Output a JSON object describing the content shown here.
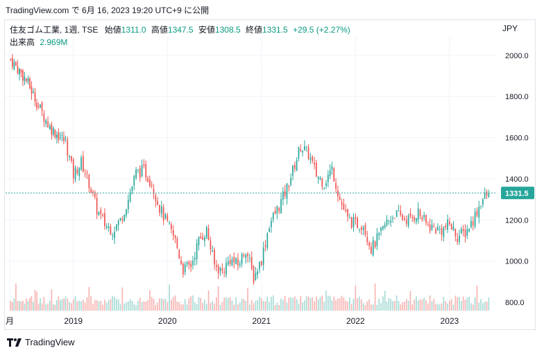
{
  "header": {
    "source": "TradingView.com で 6月 16, 2023 19:20 UTC+9 に公開"
  },
  "legend": {
    "symbol": "住友ゴム工業, 1週, TSE",
    "open_label": "始値",
    "open": "1311.0",
    "high_label": "高値",
    "high": "1347.5",
    "low_label": "安値",
    "low": "1308.5",
    "close_label": "終値",
    "close": "1331.5",
    "change": "+29.5 (+2.27%)",
    "volume_label": "出来高",
    "volume": "2.969M"
  },
  "currency": "JPY",
  "last_price_tag": "1331.5",
  "footer": {
    "brand": "TradingView"
  },
  "colors": {
    "up": "#26a69a",
    "down": "#ef5350",
    "up_vol": "#a8dcd6",
    "down_vol": "#f7b6b4",
    "grid": "#f0f3fa",
    "price_line": "#26a69a"
  },
  "chart_data": {
    "type": "candlestick",
    "x_tick_labels": [
      "月",
      "2019",
      "2020",
      "2021",
      "2022",
      "2023"
    ],
    "y_tick_labels": [
      "2000.0",
      "1800.0",
      "1600.0",
      "1400.0",
      "1200.0",
      "1000.0",
      "800.0"
    ],
    "ylim": [
      760,
      2060
    ],
    "y_ticks": [
      2000,
      1800,
      1600,
      1400,
      1200,
      1000,
      800
    ],
    "last_close": 1331.5,
    "weekly_close_path": [
      [
        "2018-05",
        1980
      ],
      [
        "2018-07",
        1880
      ],
      [
        "2018-09",
        1720
      ],
      [
        "2018-10",
        1650
      ],
      [
        "2018-12",
        1580
      ],
      [
        "2019-01",
        1420
      ],
      [
        "2019-02",
        1480
      ],
      [
        "2019-03",
        1380
      ],
      [
        "2019-04",
        1250
      ],
      [
        "2019-05",
        1180
      ],
      [
        "2019-06",
        1150
      ],
      [
        "2019-07",
        1200
      ],
      [
        "2019-08",
        1300
      ],
      [
        "2019-09",
        1430
      ],
      [
        "2019-10",
        1440
      ],
      [
        "2019-11",
        1380
      ],
      [
        "2019-12",
        1260
      ],
      [
        "2020-01",
        1180
      ],
      [
        "2020-02",
        1100
      ],
      [
        "2020-03",
        960
      ],
      [
        "2020-04",
        980
      ],
      [
        "2020-05",
        1100
      ],
      [
        "2020-06",
        1150
      ],
      [
        "2020-07",
        980
      ],
      [
        "2020-08",
        950
      ],
      [
        "2020-09",
        1010
      ],
      [
        "2020-10",
        980
      ],
      [
        "2020-11",
        1060
      ],
      [
        "2020-12",
        920
      ],
      [
        "2021-01",
        1010
      ],
      [
        "2021-02",
        1180
      ],
      [
        "2021-03",
        1250
      ],
      [
        "2021-04",
        1330
      ],
      [
        "2021-05",
        1440
      ],
      [
        "2021-06",
        1560
      ],
      [
        "2021-07",
        1520
      ],
      [
        "2021-08",
        1420
      ],
      [
        "2021-09",
        1380
      ],
      [
        "2021-10",
        1450
      ],
      [
        "2021-11",
        1300
      ],
      [
        "2021-12",
        1200
      ],
      [
        "2022-01",
        1180
      ],
      [
        "2022-02",
        1180
      ],
      [
        "2022-03",
        1060
      ],
      [
        "2022-04",
        1120
      ],
      [
        "2022-05",
        1190
      ],
      [
        "2022-06",
        1230
      ],
      [
        "2022-07",
        1210
      ],
      [
        "2022-08",
        1200
      ],
      [
        "2022-09",
        1240
      ],
      [
        "2022-10",
        1180
      ],
      [
        "2022-11",
        1160
      ],
      [
        "2022-12",
        1150
      ],
      [
        "2023-01",
        1180
      ],
      [
        "2023-02",
        1120
      ],
      [
        "2023-03",
        1140
      ],
      [
        "2023-04",
        1200
      ],
      [
        "2023-05",
        1290
      ],
      [
        "2023-06",
        1331.5
      ]
    ]
  }
}
